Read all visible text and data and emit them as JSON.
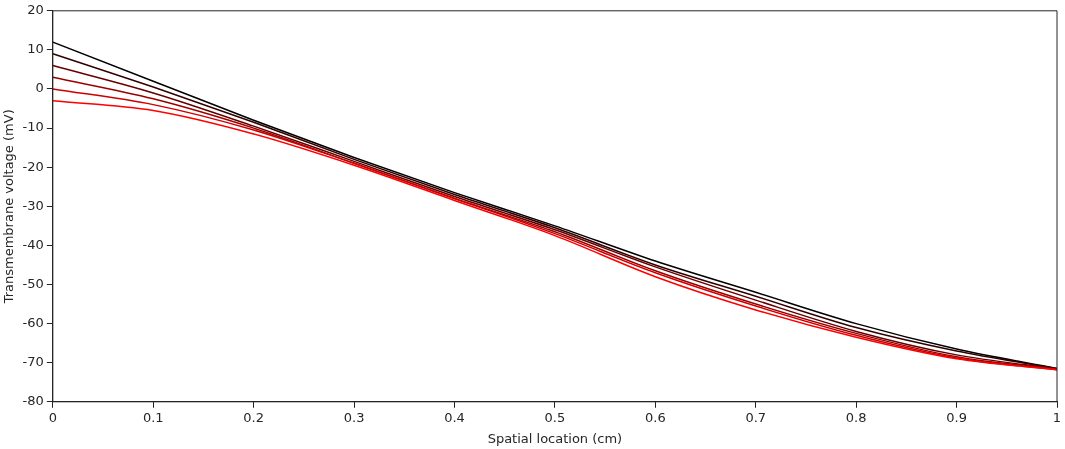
{
  "chart_data": {
    "type": "line",
    "xlabel": "Spatial location (cm)",
    "ylabel": "Transmembrane voltage (mV)",
    "x": [
      0,
      0.1,
      0.2,
      0.3,
      0.4,
      0.5,
      0.6,
      0.7,
      0.8,
      0.9,
      1
    ],
    "series": [
      {
        "color": "#000000",
        "values": [
          12,
          2,
          -8,
          -17.5,
          -26.5,
          -35,
          -44,
          -52,
          -60,
          -66.5,
          -71.5
        ]
      },
      {
        "color": "#330000",
        "values": [
          9,
          0.5,
          -8.5,
          -18,
          -27,
          -35.5,
          -45,
          -53,
          -61,
          -67,
          -71.5
        ]
      },
      {
        "color": "#660000",
        "values": [
          6,
          -1,
          -9.5,
          -18.5,
          -27.5,
          -36,
          -45.5,
          -54,
          -62,
          -68,
          -71.6
        ]
      },
      {
        "color": "#990000",
        "values": [
          3,
          -2.5,
          -10,
          -19,
          -28,
          -36.5,
          -46.5,
          -55,
          -62.5,
          -68.5,
          -71.7
        ]
      },
      {
        "color": "#cc0000",
        "values": [
          0,
          -4,
          -10.5,
          -19,
          -28,
          -37,
          -47,
          -55.5,
          -63,
          -68.8,
          -71.8
        ]
      },
      {
        "color": "#ff0000",
        "values": [
          -3,
          -5.5,
          -11.5,
          -19.5,
          -28.5,
          -37.5,
          -48,
          -56.5,
          -63.5,
          -69,
          -71.8
        ]
      }
    ],
    "xlim": [
      0,
      1
    ],
    "xticks": [
      0,
      0.1,
      0.2,
      0.3,
      0.4,
      0.5,
      0.6,
      0.7,
      0.8,
      0.9,
      1
    ],
    "ylim": [
      -80,
      20
    ],
    "yticks": [
      -80,
      -70,
      -60,
      -50,
      -40,
      -30,
      -20,
      -10,
      0,
      10,
      20
    ],
    "grid": false,
    "legend": false,
    "marker": "none",
    "line_style": "solid"
  }
}
